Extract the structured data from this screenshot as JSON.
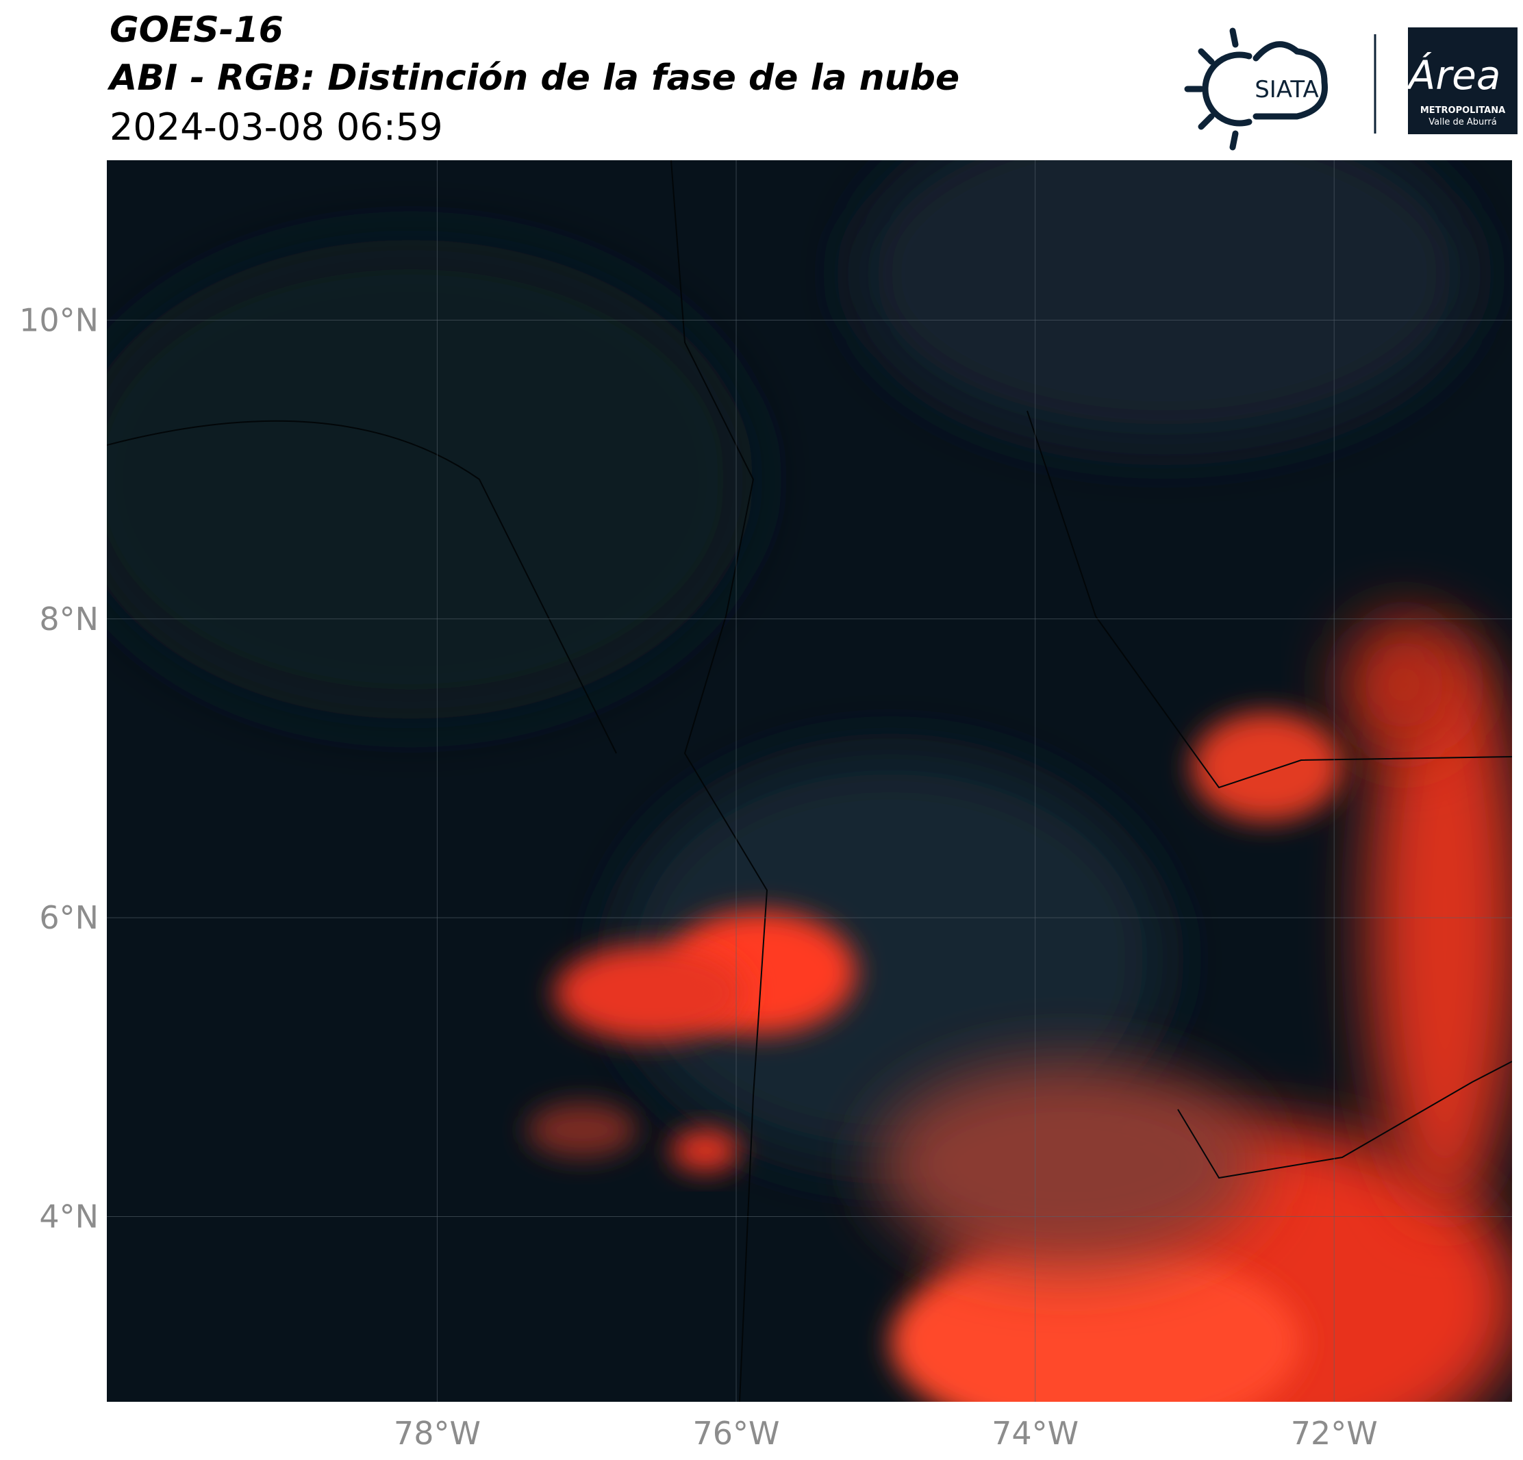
{
  "header": {
    "title": "GOES-16",
    "subtitle": "ABI - RGB: Distinción de la fase de la nube",
    "timestamp": "2024-03-08 06:59"
  },
  "logos": {
    "siata": "SIATA",
    "area": "Área",
    "area_name": "METROPOLITANA",
    "area_region": "Valle de Aburrá"
  },
  "map": {
    "lonlim": [
      -80.21,
      -70.81
    ],
    "latlim": [
      2.76,
      11.07
    ],
    "lat_ticks": [
      {
        "value": 10,
        "label": "10°N"
      },
      {
        "value": 8,
        "label": "8°N"
      },
      {
        "value": 6,
        "label": "6°N"
      },
      {
        "value": 4,
        "label": "4°N"
      }
    ],
    "lon_ticks": [
      {
        "value": -78,
        "label": "78°W"
      },
      {
        "value": -76,
        "label": "76°W"
      },
      {
        "value": -74,
        "label": "74°W"
      },
      {
        "value": -72,
        "label": "72°W"
      }
    ]
  }
}
